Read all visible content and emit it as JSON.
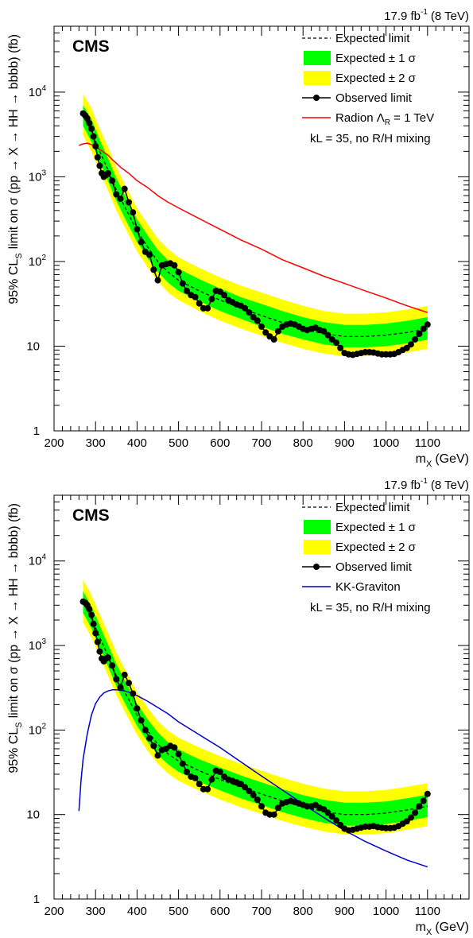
{
  "chart_data": [
    {
      "type": "line",
      "experiment": "CMS",
      "lumi": {
        "value": "17.9 fb",
        "exponent": "-1",
        "energy": "(8 TeV)"
      },
      "xlabel": {
        "main": "m",
        "sub": "X",
        "unit": "(GeV)"
      },
      "ylabel": {
        "lead": "95% CL",
        "sub": "S",
        "main": "limit on σ (pp → X → HH → bbbb) (fb)"
      },
      "xlim": [
        200,
        1200
      ],
      "ylim": [
        1,
        60000
      ],
      "yscale": "log",
      "x_ticks": [
        200,
        300,
        400,
        500,
        600,
        700,
        800,
        900,
        1000,
        1100
      ],
      "y_ticks": [
        {
          "value": 1,
          "base": "1",
          "exp": ""
        },
        {
          "value": 10,
          "base": "10",
          "exp": ""
        },
        {
          "value": 100,
          "base": "10",
          "exp": "2"
        },
        {
          "value": 1000,
          "base": "10",
          "exp": "3"
        },
        {
          "value": 10000,
          "base": "10",
          "exp": "4"
        }
      ],
      "legend": [
        {
          "kind": "dashed",
          "label": "Expected limit"
        },
        {
          "kind": "band1",
          "label": "Expected ± 1 σ"
        },
        {
          "kind": "band2",
          "label": "Expected ± 2 σ"
        },
        {
          "kind": "observed",
          "label": "Observed limit"
        },
        {
          "kind": "model",
          "label": "Radion Λ",
          "label_sub": "R",
          "label_tail": " = 1 TeV"
        }
      ],
      "note": "kL = 35, no R/H mixing",
      "colors": {
        "band1": "#00ff00",
        "band2": "#ffff00",
        "observed": "#000000",
        "expected": "#000000",
        "model": "#ff0000"
      },
      "series": [
        {
          "name": "Expected limit",
          "role": "expected",
          "x": [
            270,
            290,
            310,
            330,
            350,
            375,
            400,
            425,
            450,
            475,
            500,
            550,
            600,
            650,
            700,
            750,
            800,
            850,
            900,
            950,
            1000,
            1050,
            1100
          ],
          "y": [
            5200,
            3500,
            2000,
            1200,
            700,
            400,
            230,
            150,
            100,
            75,
            60,
            45,
            35,
            28,
            23,
            19,
            16,
            14,
            13,
            13,
            13.5,
            14.5,
            16
          ],
          "band1_low": [
            4000,
            2600,
            1500,
            880,
            520,
            295,
            170,
            110,
            75,
            56,
            45,
            34,
            26,
            21,
            17,
            14,
            12,
            10.5,
            9.7,
            9.7,
            10,
            10.8,
            11.9
          ],
          "band1_high": [
            7000,
            4800,
            2750,
            1650,
            960,
            550,
            315,
            205,
            137,
            103,
            82,
            62,
            48,
            38,
            31.5,
            26,
            22,
            19.2,
            17.8,
            17.8,
            18.5,
            19.9,
            22
          ],
          "band2_low": [
            3100,
            2000,
            1150,
            690,
            400,
            230,
            132,
            86,
            58,
            43,
            35,
            26,
            20,
            16.2,
            13.3,
            11,
            9.3,
            8.2,
            7.6,
            7.6,
            7.9,
            8.4,
            9.3
          ],
          "band2_high": [
            9500,
            6500,
            3700,
            2250,
            1300,
            740,
            425,
            280,
            186,
            140,
            112,
            84,
            65,
            52,
            43,
            35.5,
            30,
            26,
            24.2,
            24.2,
            25.1,
            27,
            29.8
          ]
        },
        {
          "name": "Observed limit",
          "role": "observed",
          "x": [
            270,
            275,
            280,
            285,
            290,
            295,
            300,
            305,
            310,
            315,
            320,
            325,
            330,
            340,
            350,
            360,
            370,
            380,
            390,
            400,
            410,
            420,
            430,
            440,
            450,
            460,
            470,
            480,
            490,
            500,
            510,
            520,
            530,
            540,
            550,
            560,
            570,
            580,
            590,
            600,
            610,
            620,
            630,
            640,
            650,
            660,
            670,
            680,
            690,
            700,
            710,
            720,
            730,
            740,
            750,
            760,
            770,
            780,
            790,
            800,
            810,
            820,
            830,
            840,
            850,
            860,
            870,
            880,
            890,
            900,
            910,
            920,
            930,
            940,
            950,
            960,
            970,
            980,
            990,
            1000,
            1010,
            1020,
            1030,
            1040,
            1050,
            1060,
            1070,
            1080,
            1090,
            1100
          ],
          "y": [
            5600,
            5300,
            4900,
            4300,
            3700,
            3000,
            2300,
            1700,
            1350,
            1100,
            1000,
            1050,
            1100,
            900,
            620,
            550,
            720,
            500,
            380,
            240,
            170,
            130,
            120,
            80,
            60,
            90,
            93,
            95,
            90,
            75,
            55,
            45,
            40,
            38,
            32,
            28,
            28,
            36,
            45,
            44,
            40,
            35,
            33,
            31,
            30,
            28,
            25,
            22,
            20,
            17,
            14.5,
            13,
            12,
            15,
            17,
            18,
            18.5,
            18,
            17,
            16,
            15.5,
            16,
            16.5,
            15.5,
            15,
            13.5,
            12,
            11,
            9.5,
            8.3,
            8,
            7.9,
            8.1,
            8.3,
            8.5,
            8.5,
            8.4,
            8.2,
            8.0,
            8.0,
            8.0,
            8.1,
            8.5,
            9.0,
            9.5,
            10.5,
            12,
            14,
            16,
            18
          ]
        },
        {
          "name": "Radion Λ_R = 1 TeV",
          "role": "model",
          "x": [
            260,
            270,
            280,
            290,
            300,
            310,
            320,
            330,
            340,
            350,
            360,
            380,
            400,
            425,
            450,
            475,
            500,
            550,
            600,
            650,
            700,
            750,
            800,
            850,
            900,
            950,
            1000,
            1050,
            1100
          ],
          "y": [
            2350,
            2450,
            2500,
            2400,
            2250,
            2100,
            1950,
            1800,
            1600,
            1450,
            1300,
            1100,
            900,
            750,
            600,
            500,
            430,
            320,
            240,
            180,
            140,
            105,
            84,
            67,
            55,
            45,
            37,
            30,
            25
          ]
        }
      ]
    },
    {
      "type": "line",
      "experiment": "CMS",
      "lumi": {
        "value": "17.9 fb",
        "exponent": "-1",
        "energy": "(8 TeV)"
      },
      "xlabel": {
        "main": "m",
        "sub": "X",
        "unit": "(GeV)"
      },
      "ylabel": {
        "lead": "95% CL",
        "sub": "S",
        "main": "limit on σ (pp → X → HH → bbbb) (fb)"
      },
      "xlim": [
        200,
        1200
      ],
      "ylim": [
        1,
        60000
      ],
      "yscale": "log",
      "x_ticks": [
        200,
        300,
        400,
        500,
        600,
        700,
        800,
        900,
        1000,
        1100
      ],
      "y_ticks": [
        {
          "value": 1,
          "base": "1",
          "exp": ""
        },
        {
          "value": 10,
          "base": "10",
          "exp": ""
        },
        {
          "value": 100,
          "base": "10",
          "exp": "2"
        },
        {
          "value": 1000,
          "base": "10",
          "exp": "3"
        },
        {
          "value": 10000,
          "base": "10",
          "exp": "4"
        }
      ],
      "legend": [
        {
          "kind": "dashed",
          "label": "Expected limit"
        },
        {
          "kind": "band1",
          "label": "Expected ± 1 σ"
        },
        {
          "kind": "band2",
          "label": "Expected ± 2 σ"
        },
        {
          "kind": "observed",
          "label": "Observed limit"
        },
        {
          "kind": "model",
          "label": "KK-Graviton",
          "label_sub": "",
          "label_tail": ""
        }
      ],
      "note": "kL = 35, no R/H mixing",
      "colors": {
        "band1": "#00ff00",
        "band2": "#ffff00",
        "observed": "#000000",
        "expected": "#000000",
        "model": "#0000cc"
      },
      "series": [
        {
          "name": "Expected limit",
          "role": "expected",
          "x": [
            270,
            290,
            310,
            330,
            350,
            375,
            400,
            425,
            450,
            475,
            500,
            550,
            600,
            650,
            700,
            750,
            800,
            850,
            900,
            950,
            1000,
            1050,
            1100
          ],
          "y": [
            3200,
            2100,
            1250,
            750,
            440,
            255,
            150,
            98,
            68,
            52,
            43,
            33,
            26,
            21,
            17.5,
            14.5,
            12.3,
            10.8,
            10,
            10,
            10.4,
            11.3,
            12.5
          ],
          "band1_low": [
            2450,
            1600,
            950,
            560,
            330,
            190,
            112,
            73,
            51,
            39,
            32,
            24.5,
            19.3,
            15.5,
            12.9,
            10.7,
            9.1,
            8,
            7.4,
            7.4,
            7.7,
            8.4,
            9.3
          ],
          "band1_high": [
            4400,
            2900,
            1720,
            1030,
            605,
            350,
            206,
            135,
            94,
            71,
            59,
            45,
            36,
            29,
            24,
            20,
            17,
            14.9,
            13.8,
            13.8,
            14.3,
            15.6,
            17.2
          ],
          "band2_low": [
            1900,
            1250,
            740,
            440,
            260,
            150,
            88,
            57,
            40,
            30.5,
            25,
            19.2,
            15.1,
            12.2,
            10.2,
            8.4,
            7.2,
            6.3,
            5.8,
            5.8,
            6,
            6.6,
            7.3
          ],
          "band2_high": [
            6000,
            3950,
            2350,
            1410,
            825,
            480,
            280,
            185,
            128,
            98,
            81,
            62,
            49,
            40,
            33,
            27.3,
            23.1,
            20.3,
            18.8,
            18.8,
            19.6,
            21.3,
            23.5
          ]
        },
        {
          "name": "Observed limit",
          "role": "observed",
          "x": [
            270,
            275,
            280,
            285,
            290,
            295,
            300,
            305,
            310,
            315,
            320,
            325,
            330,
            340,
            350,
            360,
            370,
            380,
            390,
            400,
            410,
            420,
            430,
            440,
            450,
            460,
            470,
            480,
            490,
            500,
            510,
            520,
            530,
            540,
            550,
            560,
            570,
            580,
            590,
            600,
            610,
            620,
            630,
            640,
            650,
            660,
            670,
            680,
            690,
            700,
            710,
            720,
            730,
            740,
            750,
            760,
            770,
            780,
            790,
            800,
            810,
            820,
            830,
            840,
            850,
            860,
            870,
            880,
            890,
            900,
            910,
            920,
            930,
            940,
            950,
            960,
            970,
            980,
            990,
            1000,
            1010,
            1020,
            1030,
            1040,
            1050,
            1060,
            1070,
            1080,
            1090,
            1100
          ],
          "y": [
            3300,
            3200,
            3000,
            2700,
            2300,
            1800,
            1400,
            1100,
            850,
            700,
            650,
            700,
            720,
            580,
            400,
            320,
            450,
            360,
            270,
            180,
            130,
            100,
            80,
            65,
            50,
            58,
            60,
            65,
            62,
            52,
            40,
            32,
            28,
            27,
            23,
            20,
            20,
            26,
            33,
            32,
            28,
            26,
            25,
            24,
            23,
            21,
            19,
            17,
            15,
            12.5,
            10.5,
            10,
            10,
            12,
            13.5,
            14,
            14.5,
            14,
            13.5,
            13,
            12.5,
            12.5,
            13,
            12,
            11.5,
            10.5,
            9.5,
            8.5,
            7.5,
            6.8,
            6.5,
            6.6,
            6.8,
            7.0,
            7.2,
            7.2,
            7.3,
            7.1,
            7.0,
            6.9,
            6.9,
            7.0,
            7.3,
            7.8,
            8.3,
            9.2,
            10.5,
            12.5,
            14.5,
            17.5
          ]
        },
        {
          "name": "KK-Graviton",
          "role": "model",
          "x": [
            260,
            265,
            270,
            280,
            290,
            300,
            310,
            320,
            330,
            340,
            350,
            360,
            370,
            380,
            400,
            425,
            450,
            475,
            500,
            550,
            600,
            650,
            700,
            750,
            800,
            850,
            900,
            950,
            1000,
            1050,
            1100
          ],
          "y": [
            11,
            25,
            45,
            90,
            150,
            205,
            245,
            275,
            290,
            298,
            300,
            295,
            290,
            280,
            255,
            220,
            185,
            155,
            125,
            88,
            62,
            42,
            28.5,
            19.5,
            13.3,
            9.2,
            6.5,
            4.8,
            3.7,
            2.9,
            2.4
          ]
        }
      ]
    }
  ]
}
